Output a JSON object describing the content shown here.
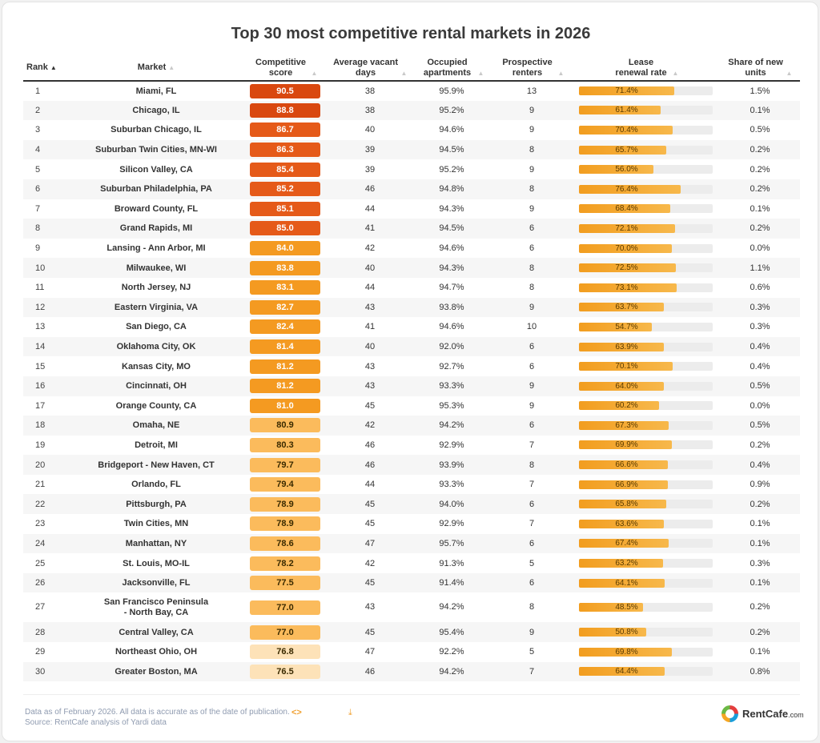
{
  "chart_data": {
    "type": "table",
    "title": "Top 30 most competitive rental markets in 2026",
    "columns": [
      {
        "label": "Rank",
        "sort": "asc"
      },
      {
        "label": "Market",
        "sort": "none"
      },
      {
        "label": "Competitive score",
        "sort": "none"
      },
      {
        "label": "Average vacant days",
        "sort": "none"
      },
      {
        "label": "Occupied apartments",
        "sort": "none"
      },
      {
        "label": "Prospective renters",
        "sort": "none"
      },
      {
        "label": "Lease renewal rate",
        "sort": "none"
      },
      {
        "label": "Share of new units",
        "sort": "none"
      }
    ],
    "rows": [
      {
        "rank": "1",
        "market": "Miami, FL",
        "score": "90.5",
        "vacant_days": "38",
        "occupied": "95.9%",
        "renters": "13",
        "renewal": "71.4%",
        "new_units": "1.5%"
      },
      {
        "rank": "2",
        "market": "Chicago, IL",
        "score": "88.8",
        "vacant_days": "38",
        "occupied": "95.2%",
        "renters": "9",
        "renewal": "61.4%",
        "new_units": "0.1%"
      },
      {
        "rank": "3",
        "market": "Suburban Chicago, IL",
        "score": "86.7",
        "vacant_days": "40",
        "occupied": "94.6%",
        "renters": "9",
        "renewal": "70.4%",
        "new_units": "0.5%"
      },
      {
        "rank": "4",
        "market": "Suburban Twin Cities, MN-WI",
        "score": "86.3",
        "vacant_days": "39",
        "occupied": "94.5%",
        "renters": "8",
        "renewal": "65.7%",
        "new_units": "0.2%"
      },
      {
        "rank": "5",
        "market": "Silicon Valley, CA",
        "score": "85.4",
        "vacant_days": "39",
        "occupied": "95.2%",
        "renters": "9",
        "renewal": "56.0%",
        "new_units": "0.2%"
      },
      {
        "rank": "6",
        "market": "Suburban Philadelphia, PA",
        "score": "85.2",
        "vacant_days": "46",
        "occupied": "94.8%",
        "renters": "8",
        "renewal": "76.4%",
        "new_units": "0.2%"
      },
      {
        "rank": "7",
        "market": "Broward County, FL",
        "score": "85.1",
        "vacant_days": "44",
        "occupied": "94.3%",
        "renters": "9",
        "renewal": "68.4%",
        "new_units": "0.1%"
      },
      {
        "rank": "8",
        "market": "Grand Rapids, MI",
        "score": "85.0",
        "vacant_days": "41",
        "occupied": "94.5%",
        "renters": "6",
        "renewal": "72.1%",
        "new_units": "0.2%"
      },
      {
        "rank": "9",
        "market": "Lansing - Ann Arbor, MI",
        "score": "84.0",
        "vacant_days": "42",
        "occupied": "94.6%",
        "renters": "6",
        "renewal": "70.0%",
        "new_units": "0.0%"
      },
      {
        "rank": "10",
        "market": "Milwaukee, WI",
        "score": "83.8",
        "vacant_days": "40",
        "occupied": "94.3%",
        "renters": "8",
        "renewal": "72.5%",
        "new_units": "1.1%"
      },
      {
        "rank": "11",
        "market": "North Jersey, NJ",
        "score": "83.1",
        "vacant_days": "44",
        "occupied": "94.7%",
        "renters": "8",
        "renewal": "73.1%",
        "new_units": "0.6%"
      },
      {
        "rank": "12",
        "market": "Eastern Virginia, VA",
        "score": "82.7",
        "vacant_days": "43",
        "occupied": "93.8%",
        "renters": "9",
        "renewal": "63.7%",
        "new_units": "0.3%"
      },
      {
        "rank": "13",
        "market": "San Diego, CA",
        "score": "82.4",
        "vacant_days": "41",
        "occupied": "94.6%",
        "renters": "10",
        "renewal": "54.7%",
        "new_units": "0.3%"
      },
      {
        "rank": "14",
        "market": "Oklahoma City, OK",
        "score": "81.4",
        "vacant_days": "40",
        "occupied": "92.0%",
        "renters": "6",
        "renewal": "63.9%",
        "new_units": "0.4%"
      },
      {
        "rank": "15",
        "market": "Kansas City, MO",
        "score": "81.2",
        "vacant_days": "43",
        "occupied": "92.7%",
        "renters": "6",
        "renewal": "70.1%",
        "new_units": "0.4%"
      },
      {
        "rank": "16",
        "market": "Cincinnati, OH",
        "score": "81.2",
        "vacant_days": "43",
        "occupied": "93.3%",
        "renters": "9",
        "renewal": "64.0%",
        "new_units": "0.5%"
      },
      {
        "rank": "17",
        "market": "Orange County, CA",
        "score": "81.0",
        "vacant_days": "45",
        "occupied": "95.3%",
        "renters": "9",
        "renewal": "60.2%",
        "new_units": "0.0%"
      },
      {
        "rank": "18",
        "market": "Omaha, NE",
        "score": "80.9",
        "vacant_days": "42",
        "occupied": "94.2%",
        "renters": "6",
        "renewal": "67.3%",
        "new_units": "0.5%"
      },
      {
        "rank": "19",
        "market": "Detroit, MI",
        "score": "80.3",
        "vacant_days": "46",
        "occupied": "92.9%",
        "renters": "7",
        "renewal": "69.9%",
        "new_units": "0.2%"
      },
      {
        "rank": "20",
        "market": "Bridgeport - New Haven, CT",
        "score": "79.7",
        "vacant_days": "46",
        "occupied": "93.9%",
        "renters": "8",
        "renewal": "66.6%",
        "new_units": "0.4%"
      },
      {
        "rank": "21",
        "market": "Orlando, FL",
        "score": "79.4",
        "vacant_days": "44",
        "occupied": "93.3%",
        "renters": "7",
        "renewal": "66.9%",
        "new_units": "0.9%"
      },
      {
        "rank": "22",
        "market": "Pittsburgh, PA",
        "score": "78.9",
        "vacant_days": "45",
        "occupied": "94.0%",
        "renters": "6",
        "renewal": "65.8%",
        "new_units": "0.2%"
      },
      {
        "rank": "23",
        "market": "Twin Cities, MN",
        "score": "78.9",
        "vacant_days": "45",
        "occupied": "92.9%",
        "renters": "7",
        "renewal": "63.6%",
        "new_units": "0.1%"
      },
      {
        "rank": "24",
        "market": "Manhattan, NY",
        "score": "78.6",
        "vacant_days": "47",
        "occupied": "95.7%",
        "renters": "6",
        "renewal": "67.4%",
        "new_units": "0.1%"
      },
      {
        "rank": "25",
        "market": "St. Louis, MO-IL",
        "score": "78.2",
        "vacant_days": "42",
        "occupied": "91.3%",
        "renters": "5",
        "renewal": "63.2%",
        "new_units": "0.3%"
      },
      {
        "rank": "26",
        "market": "Jacksonville, FL",
        "score": "77.5",
        "vacant_days": "45",
        "occupied": "91.4%",
        "renters": "6",
        "renewal": "64.1%",
        "new_units": "0.1%"
      },
      {
        "rank": "27",
        "market": "San Francisco Peninsula - North Bay, CA",
        "score": "77.0",
        "vacant_days": "43",
        "occupied": "94.2%",
        "renters": "8",
        "renewal": "48.5%",
        "new_units": "0.2%"
      },
      {
        "rank": "28",
        "market": "Central Valley, CA",
        "score": "77.0",
        "vacant_days": "45",
        "occupied": "95.4%",
        "renters": "9",
        "renewal": "50.8%",
        "new_units": "0.2%"
      },
      {
        "rank": "29",
        "market": "Northeast Ohio, OH",
        "score": "76.8",
        "vacant_days": "47",
        "occupied": "92.2%",
        "renters": "5",
        "renewal": "69.8%",
        "new_units": "0.1%"
      },
      {
        "rank": "30",
        "market": "Greater Boston, MA",
        "score": "76.5",
        "vacant_days": "46",
        "occupied": "94.2%",
        "renters": "7",
        "renewal": "64.4%",
        "new_units": "0.8%"
      }
    ],
    "score_colors": [
      {
        "min": 85.0,
        "bg": "#e55a19",
        "fg": "#ffffff"
      },
      {
        "min": 81.0,
        "bg": "#f49a21",
        "fg": "#ffffff"
      },
      {
        "min": 77.0,
        "bg": "#fbbb5c",
        "fg": "#3a2a00"
      },
      {
        "min": 0,
        "bg": "#fde2b8",
        "fg": "#3a2a00"
      }
    ],
    "top_score_color": {
      "min": 88.0,
      "bg": "#d9480f",
      "fg": "#ffffff"
    },
    "renewal_bar_color": "#f29d1f"
  },
  "footer": {
    "note_line1": "Data as of February 2026. All data is accurate as of the date of publication.",
    "note_line2": "Source: RentCafe analysis of Yardi data",
    "embed_icon": "code-icon",
    "download_icon": "download-icon",
    "logo_name": "RentCafe",
    "logo_suffix": ".com"
  }
}
